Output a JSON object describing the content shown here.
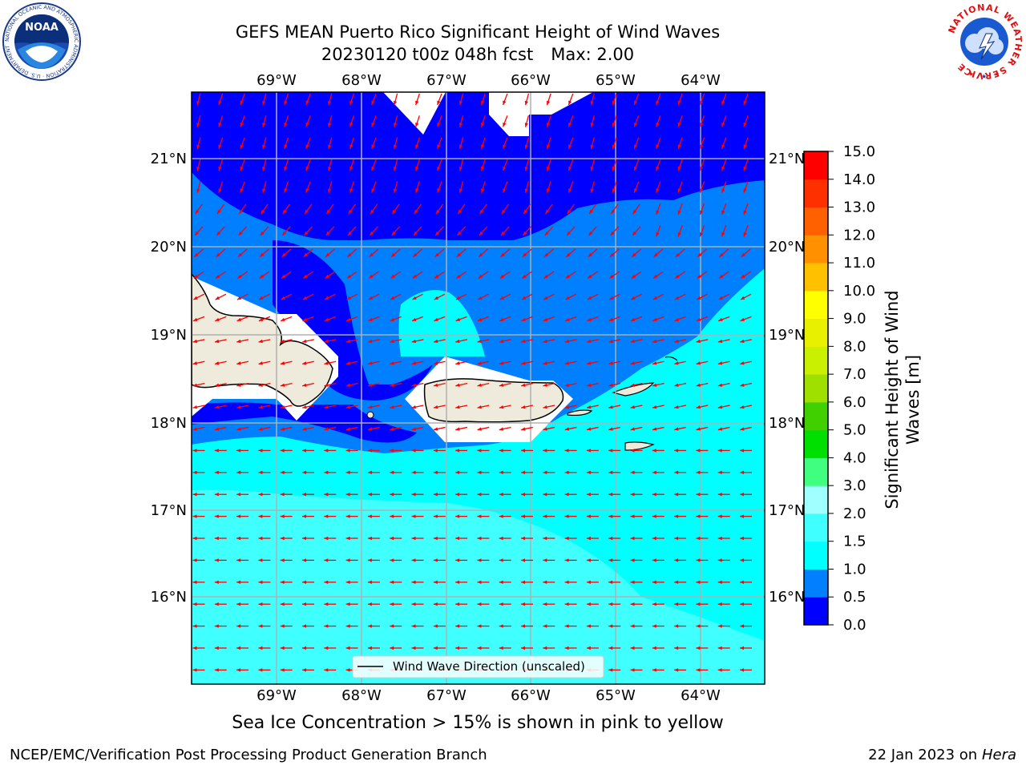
{
  "title": {
    "line1": "GEFS MEAN Puerto Rico Significant Height of Wind Waves",
    "line2_date": "20230120 t00z 048h fcst",
    "line2_max": "Max: 2.00"
  },
  "map": {
    "lon_labels": [
      "69°W",
      "68°W",
      "67°W",
      "66°W",
      "65°W",
      "64°W"
    ],
    "lat_labels": [
      "21°N",
      "20°N",
      "19°N",
      "18°N",
      "17°N",
      "16°N"
    ],
    "legend_label": "Wind Wave Direction (unscaled)",
    "vector_color": "#ff0000",
    "grid_color": "#b0b0b0",
    "land_color": "#eeeadc"
  },
  "colorbar": {
    "label": "Significant Height of Wind Waves [m]",
    "ticks": [
      "0.0",
      "0.5",
      "1.0",
      "1.5",
      "2.0",
      "3.0",
      "4.0",
      "5.0",
      "6.0",
      "7.0",
      "8.0",
      "9.0",
      "10.0",
      "11.0",
      "12.0",
      "13.0",
      "14.0",
      "15.0"
    ],
    "colors": [
      "#0000ff",
      "#0080ff",
      "#00ffff",
      "#40ffff",
      "#a0ffff",
      "#40ff80",
      "#00e000",
      "#40d000",
      "#a0e000",
      "#c8f000",
      "#e8f000",
      "#ffff00",
      "#ffc000",
      "#ff9000",
      "#ff6000",
      "#ff3000",
      "#ff0000"
    ]
  },
  "notes": {
    "sea_ice": "Sea Ice Concentration > 15% is shown in pink to yellow"
  },
  "footer": {
    "left": "NCEP/EMC/Verification Post Processing Product Generation Branch",
    "right_prefix": "22 Jan 2023 on ",
    "right_machine": "Hera"
  },
  "logos": {
    "noaa_text": "NOAA",
    "noaa_ring": "NATIONAL OCEANIC AND ATMOSPHERIC ADMINISTRATION · U.S. DEPARTMENT OF COMMERCE",
    "nws_ring": "NATIONAL WEATHER SERVICE"
  }
}
